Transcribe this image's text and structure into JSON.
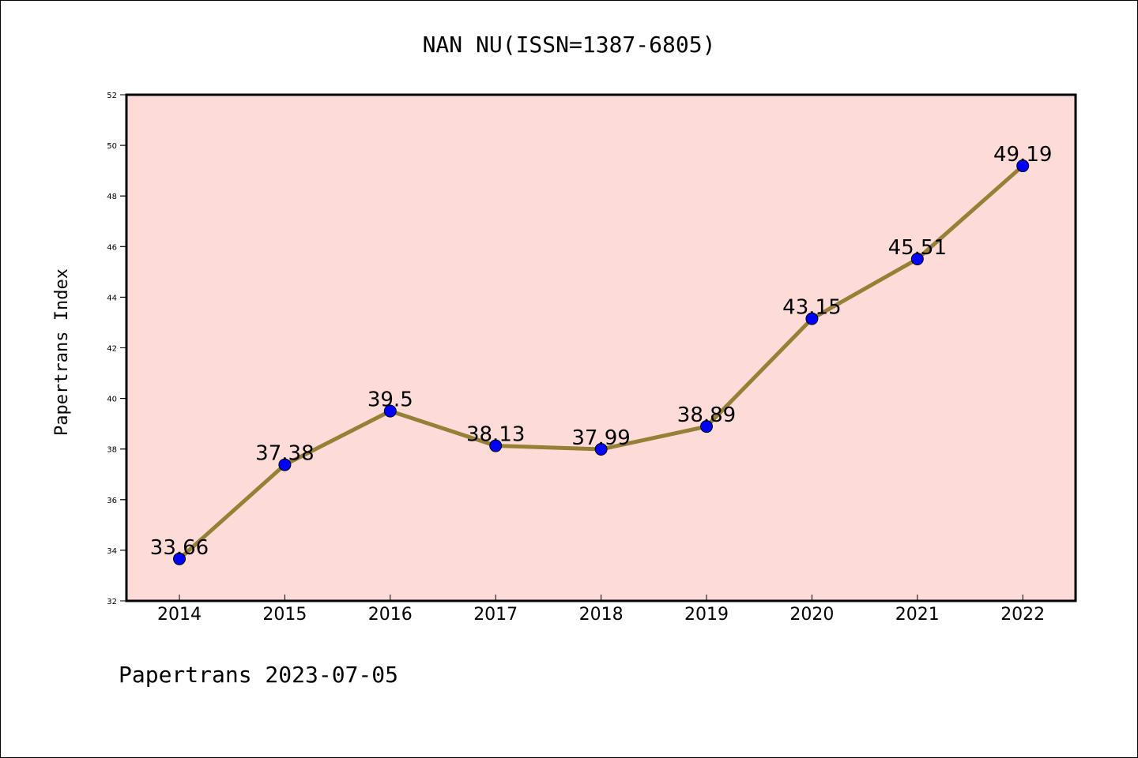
{
  "chart_data": {
    "type": "line",
    "title": "NAN NU(ISSN=1387-6805)",
    "xlabel": "",
    "ylabel": "Papertrans Index",
    "footer": "Papertrans 2023-07-05",
    "categories": [
      "2014",
      "2015",
      "2016",
      "2017",
      "2018",
      "2019",
      "2020",
      "2021",
      "2022"
    ],
    "values": [
      33.66,
      37.38,
      39.5,
      38.13,
      37.99,
      38.89,
      43.15,
      45.51,
      49.19
    ],
    "labels": [
      "33.66",
      "37.38",
      "39.5",
      "38.13",
      "37.99",
      "38.89",
      "43.15",
      "45.51",
      "49.19"
    ],
    "ylim": [
      32,
      52
    ],
    "yticks": [
      "32",
      "34",
      "36",
      "38",
      "40",
      "42",
      "44",
      "46",
      "48",
      "50",
      "52"
    ],
    "grid": false,
    "colors": {
      "background": "#fddbd8",
      "line": "#958035",
      "marker": "#0000ff"
    }
  }
}
